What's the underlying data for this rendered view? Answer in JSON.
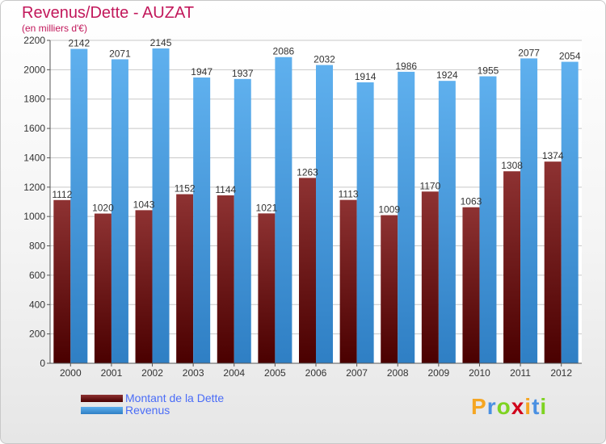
{
  "header": {
    "title": "Revenus/Dette - AUZAT",
    "subtitle": "(en milliers d'€)"
  },
  "legend": {
    "debt_label": "Montant de la Dette",
    "revenue_label": "Revenus"
  },
  "logo": {
    "text": "Proxiti"
  },
  "colors": {
    "debt": "#7a1c1c",
    "revenue": "#4fa3e0",
    "title": "#c2185b",
    "legend_text": "#4a6cf7"
  },
  "chart_data": {
    "type": "bar",
    "title": "Revenus/Dette - AUZAT",
    "subtitle": "(en milliers d'€)",
    "categories": [
      "2000",
      "2001",
      "2002",
      "2003",
      "2004",
      "2005",
      "2006",
      "2007",
      "2008",
      "2009",
      "2010",
      "2011",
      "2012"
    ],
    "series": [
      {
        "name": "Montant de la Dette",
        "values": [
          1112,
          1020,
          1043,
          1152,
          1144,
          1021,
          1263,
          1113,
          1009,
          1170,
          1063,
          1308,
          1374
        ],
        "labels": [
          "1112",
          "1020",
          "1043",
          "1152",
          "1144",
          "1021",
          "1263",
          "1113",
          "1009",
          "1170",
          "1063",
          "1308",
          "1374"
        ]
      },
      {
        "name": "Revenus",
        "values": [
          2142,
          2071,
          2145,
          1947,
          1937,
          2086,
          2032,
          1914,
          1986,
          1924,
          1955,
          2077,
          2054
        ],
        "labels": [
          "2142",
          "2071",
          "2145",
          "1947",
          "1937",
          "2086",
          "2032",
          "1914",
          "1986",
          "1924",
          "1955",
          "2077",
          "2054"
        ]
      }
    ],
    "ylim": [
      0,
      2200
    ],
    "yticks": [
      "0",
      "200",
      "400",
      "600",
      "800",
      "1000",
      "1200",
      "1400",
      "1600",
      "1800",
      "2000",
      "2200"
    ],
    "grid": true,
    "legend_position": "bottom-left"
  }
}
